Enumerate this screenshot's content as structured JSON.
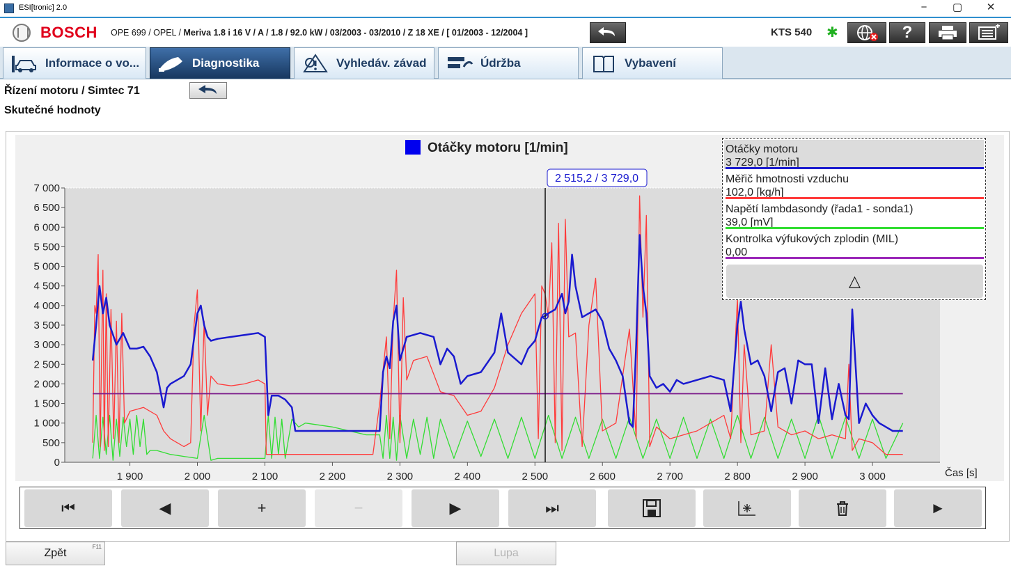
{
  "window": {
    "title": "ESI[tronic] 2.0",
    "controls": {
      "minimize": "−",
      "restore": "▢",
      "close": "✕"
    }
  },
  "header": {
    "brand": "BOSCH",
    "vehicle_prefix": "OPE 699 / OPEL /",
    "vehicle_rest": "Meriva 1.8 i 16 V / A / 1.8 / 92.0 kW / 03/2003 - 03/2010 / Z 18 XE / [ 01/2003 - 12/2004 ]",
    "device": "KTS 540",
    "bluetooth_icon": "✱"
  },
  "tabs": [
    {
      "label": "Informace o vo...",
      "icon": "car-lift-icon",
      "active": false
    },
    {
      "label": "Diagnostika",
      "icon": "diagnostic-plug-icon",
      "active": true
    },
    {
      "label": "Vyhledáv. závad",
      "icon": "warning-search-icon",
      "active": false
    },
    {
      "label": "Údržba",
      "icon": "service-wrench-icon",
      "active": false
    },
    {
      "label": "Vybavení",
      "icon": "book-icon",
      "active": false
    }
  ],
  "breadcrumb": {
    "system": "Řízení motoru / Simtec 71",
    "section": "Skutečné hodnoty"
  },
  "legend": {
    "items": [
      {
        "name": "Otáčky motoru",
        "value": "3 729,0 [1/min]",
        "color": "#1a1acf"
      },
      {
        "name": "Měřič hmotnosti vzduchu",
        "value": "102,0 [kg/h]",
        "color": "#ff3b3b"
      },
      {
        "name": "Napětí lambdasondy (řada1 - sonda1)",
        "value": "39,0 [mV]",
        "color": "#33dd33"
      },
      {
        "name": "Kontrolka výfukových zplodin (MIL)",
        "value": "0,00",
        "color": "#9a28b8"
      }
    ],
    "collapse_icon": "△"
  },
  "toolbar": {
    "buttons": [
      {
        "name": "first-button",
        "glyph": "⏮",
        "enabled": true
      },
      {
        "name": "prev-button",
        "glyph": "◀",
        "enabled": true
      },
      {
        "name": "zoom-in-button",
        "glyph": "+",
        "enabled": true
      },
      {
        "name": "zoom-out-button",
        "glyph": "−",
        "enabled": false
      },
      {
        "name": "next-button",
        "glyph": "▶",
        "enabled": true
      },
      {
        "name": "last-button",
        "glyph": "⏭",
        "enabled": true
      },
      {
        "name": "save-button",
        "glyph": "🖫",
        "enabled": true
      },
      {
        "name": "measure-button",
        "glyph": "⍖",
        "enabled": true
      },
      {
        "name": "delete-button",
        "glyph": "🗑",
        "enabled": true
      },
      {
        "name": "play-button",
        "glyph": "►",
        "enabled": true
      }
    ]
  },
  "footer": {
    "back_label": "Zpět",
    "back_key": "F11",
    "magnifier_label": "Lupa"
  },
  "chart_data": {
    "type": "line",
    "title": "Otáčky motoru [1/min]",
    "title_color": "#0000ee",
    "xlabel": "Čas [s]",
    "ylabel": "",
    "xlim": [
      1800,
      3100
    ],
    "ylim": [
      0,
      7000
    ],
    "x_ticks": [
      1900,
      2000,
      2100,
      2200,
      2300,
      2400,
      2500,
      2600,
      2700,
      2800,
      2900,
      3000
    ],
    "x_tick_labels": [
      "1 900",
      "2 000",
      "2 100",
      "2 200",
      "2 300",
      "2 400",
      "2 500",
      "2 600",
      "2 700",
      "2 800",
      "2 900",
      "3 000"
    ],
    "y_ticks": [
      0,
      500,
      1000,
      1500,
      2000,
      2500,
      3000,
      3500,
      4000,
      4500,
      5000,
      5500,
      6000,
      6500,
      7000
    ],
    "y_tick_labels": [
      "0",
      "500",
      "1 000",
      "1 500",
      "2 000",
      "2 500",
      "3 000",
      "3 500",
      "4 000",
      "4 500",
      "5 000",
      "5 500",
      "6 000",
      "6 500",
      "7 000"
    ],
    "grid": false,
    "cursor": {
      "x": 2515.2,
      "y": 3729.0,
      "label": "2 515,2 / 3 729,0"
    },
    "series": [
      {
        "name": "Otáčky motoru",
        "color": "#1a1acf",
        "x": [
          1845,
          1850,
          1855,
          1860,
          1865,
          1870,
          1880,
          1890,
          1900,
          1910,
          1920,
          1930,
          1940,
          1950,
          1955,
          1960,
          1970,
          1980,
          1990,
          2000,
          2005,
          2010,
          2015,
          2020,
          2030,
          2050,
          2070,
          2090,
          2100,
          2105,
          2110,
          2120,
          2130,
          2140,
          2145,
          2150,
          2200,
          2250,
          2270,
          2275,
          2280,
          2285,
          2290,
          2295,
          2300,
          2310,
          2330,
          2350,
          2360,
          2370,
          2380,
          2390,
          2400,
          2420,
          2440,
          2450,
          2460,
          2480,
          2490,
          2500,
          2505,
          2510,
          2515,
          2520,
          2530,
          2540,
          2545,
          2550,
          2555,
          2560,
          2570,
          2580,
          2590,
          2600,
          2610,
          2620,
          2630,
          2640,
          2645,
          2650,
          2655,
          2660,
          2665,
          2670,
          2680,
          2690,
          2700,
          2710,
          2720,
          2740,
          2760,
          2780,
          2790,
          2800,
          2805,
          2810,
          2820,
          2830,
          2840,
          2850,
          2860,
          2870,
          2880,
          2890,
          2900,
          2910,
          2920,
          2930,
          2940,
          2950,
          2960,
          2965,
          2970,
          2980,
          2990,
          3000,
          3010,
          3020,
          3030,
          3045
        ],
        "y": [
          2600,
          3500,
          4500,
          3800,
          4200,
          3500,
          3000,
          3300,
          2900,
          2900,
          2950,
          2700,
          2300,
          1400,
          1900,
          2000,
          2100,
          2200,
          2500,
          3800,
          4000,
          3500,
          3200,
          3100,
          3150,
          3200,
          3250,
          3300,
          3200,
          1200,
          1700,
          1700,
          1600,
          1400,
          800,
          800,
          800,
          800,
          800,
          2300,
          2700,
          2400,
          3600,
          4000,
          2600,
          3200,
          3300,
          3200,
          2500,
          2900,
          2700,
          2000,
          2200,
          2300,
          2800,
          3800,
          2800,
          2500,
          2900,
          3100,
          3400,
          3700,
          3729,
          3800,
          3900,
          4300,
          3800,
          4100,
          5300,
          4500,
          3700,
          3800,
          3900,
          3600,
          2900,
          2600,
          2200,
          1000,
          900,
          3000,
          5800,
          4500,
          3800,
          2200,
          1900,
          2000,
          1800,
          2100,
          2000,
          2100,
          2200,
          2100,
          1300,
          3500,
          4100,
          3400,
          2500,
          2600,
          2200,
          1300,
          2300,
          2400,
          1500,
          2600,
          2500,
          2500,
          1000,
          2400,
          1100,
          2000,
          1200,
          1100,
          3900,
          1000,
          1500,
          1200,
          1000,
          900,
          800,
          800
        ],
        "shown_as": "curve"
      },
      {
        "name": "Měřič hmotnosti vzduchu",
        "color": "#ff3b3b",
        "x": [
          1845,
          1848,
          1850,
          1853,
          1856,
          1860,
          1862,
          1865,
          1868,
          1872,
          1876,
          1880,
          1884,
          1888,
          1892,
          1900,
          1920,
          1940,
          1950,
          1960,
          1980,
          1990,
          1995,
          2000,
          2005,
          2010,
          2015,
          2020,
          2030,
          2050,
          2070,
          2090,
          2100,
          2102,
          2120,
          2140,
          2200,
          2260,
          2270,
          2280,
          2285,
          2290,
          2295,
          2300,
          2305,
          2310,
          2320,
          2340,
          2360,
          2380,
          2400,
          2420,
          2440,
          2460,
          2480,
          2500,
          2505,
          2510,
          2515,
          2520,
          2525,
          2530,
          2535,
          2540,
          2545,
          2550,
          2560,
          2570,
          2580,
          2590,
          2600,
          2620,
          2640,
          2650,
          2655,
          2660,
          2665,
          2670,
          2680,
          2700,
          2720,
          2740,
          2780,
          2790,
          2800,
          2805,
          2810,
          2820,
          2840,
          2850,
          2860,
          2880,
          2900,
          2920,
          2940,
          2960,
          2965,
          2970,
          2980,
          3000,
          3020,
          3045
        ],
        "y": [
          500,
          4000,
          3800,
          5300,
          400,
          4900,
          300,
          4300,
          400,
          3900,
          600,
          3600,
          500,
          3800,
          1000,
          1300,
          1400,
          1200,
          800,
          600,
          400,
          500,
          3500,
          4400,
          800,
          3600,
          1200,
          2200,
          2000,
          1950,
          2000,
          2100,
          2000,
          200,
          200,
          200,
          200,
          200,
          1500,
          3200,
          600,
          3600,
          4900,
          500,
          4200,
          2100,
          2600,
          2700,
          1800,
          1700,
          1200,
          1300,
          1900,
          3000,
          3800,
          4300,
          600,
          4500,
          4300,
          3700,
          5600,
          500,
          6100,
          300,
          6200,
          3200,
          3300,
          400,
          3500,
          4700,
          800,
          1000,
          3400,
          600,
          6800,
          3700,
          6300,
          400,
          900,
          600,
          700,
          800,
          1200,
          600,
          4200,
          500,
          3000,
          700,
          800,
          3000,
          900,
          700,
          800,
          600,
          700,
          600,
          2500,
          300,
          600,
          500,
          200,
          200
        ],
        "shown_as": "curve"
      },
      {
        "name": "Napětí lambdasondy (řada1 - sonda1)",
        "color": "#33dd33",
        "x": [
          1845,
          1850,
          1855,
          1860,
          1865,
          1870,
          1875,
          1880,
          1885,
          1890,
          1895,
          1900,
          1905,
          1910,
          1915,
          1920,
          1925,
          1930,
          1940,
          1960,
          1980,
          2000,
          2010,
          2020,
          2030,
          2100,
          2105,
          2110,
          2115,
          2120,
          2125,
          2130,
          2140,
          2150,
          2160,
          2200,
          2250,
          2270,
          2275,
          2280,
          2285,
          2290,
          2295,
          2300,
          2310,
          2320,
          2330,
          2340,
          2350,
          2360,
          2380,
          2400,
          2420,
          2440,
          2460,
          2480,
          2500,
          2520,
          2540,
          2560,
          2580,
          2600,
          2620,
          2640,
          2660,
          2680,
          2700,
          2720,
          2740,
          2760,
          2780,
          2800,
          2820,
          2840,
          2860,
          2880,
          2900,
          2920,
          2940,
          2960,
          2980,
          3000,
          3020,
          3045
        ],
        "y": [
          100,
          1200,
          100,
          1150,
          200,
          1200,
          50,
          1100,
          150,
          1150,
          400,
          1100,
          200,
          1200,
          400,
          1100,
          200,
          300,
          300,
          200,
          150,
          100,
          1200,
          50,
          100,
          100,
          1200,
          100,
          1150,
          200,
          1100,
          100,
          1100,
          900,
          1000,
          900,
          700,
          700,
          100,
          1200,
          100,
          1150,
          50,
          1200,
          100,
          1100,
          200,
          1150,
          100,
          1100,
          100,
          1050,
          150,
          1100,
          100,
          1150,
          100,
          1200,
          100,
          1150,
          100,
          1100,
          100,
          1150,
          100,
          1100,
          100,
          1150,
          100,
          1100,
          100,
          1200,
          100,
          1150,
          100,
          1100,
          100,
          1200,
          100,
          1150,
          100,
          1100,
          100,
          1000
        ],
        "shown_as": "curve"
      },
      {
        "name": "Kontrolka výfukových zplodin (MIL)",
        "color": "#7a1a8a",
        "x": [
          1845,
          3045
        ],
        "y": [
          1750,
          1750
        ],
        "shown_as": "curve"
      }
    ]
  }
}
